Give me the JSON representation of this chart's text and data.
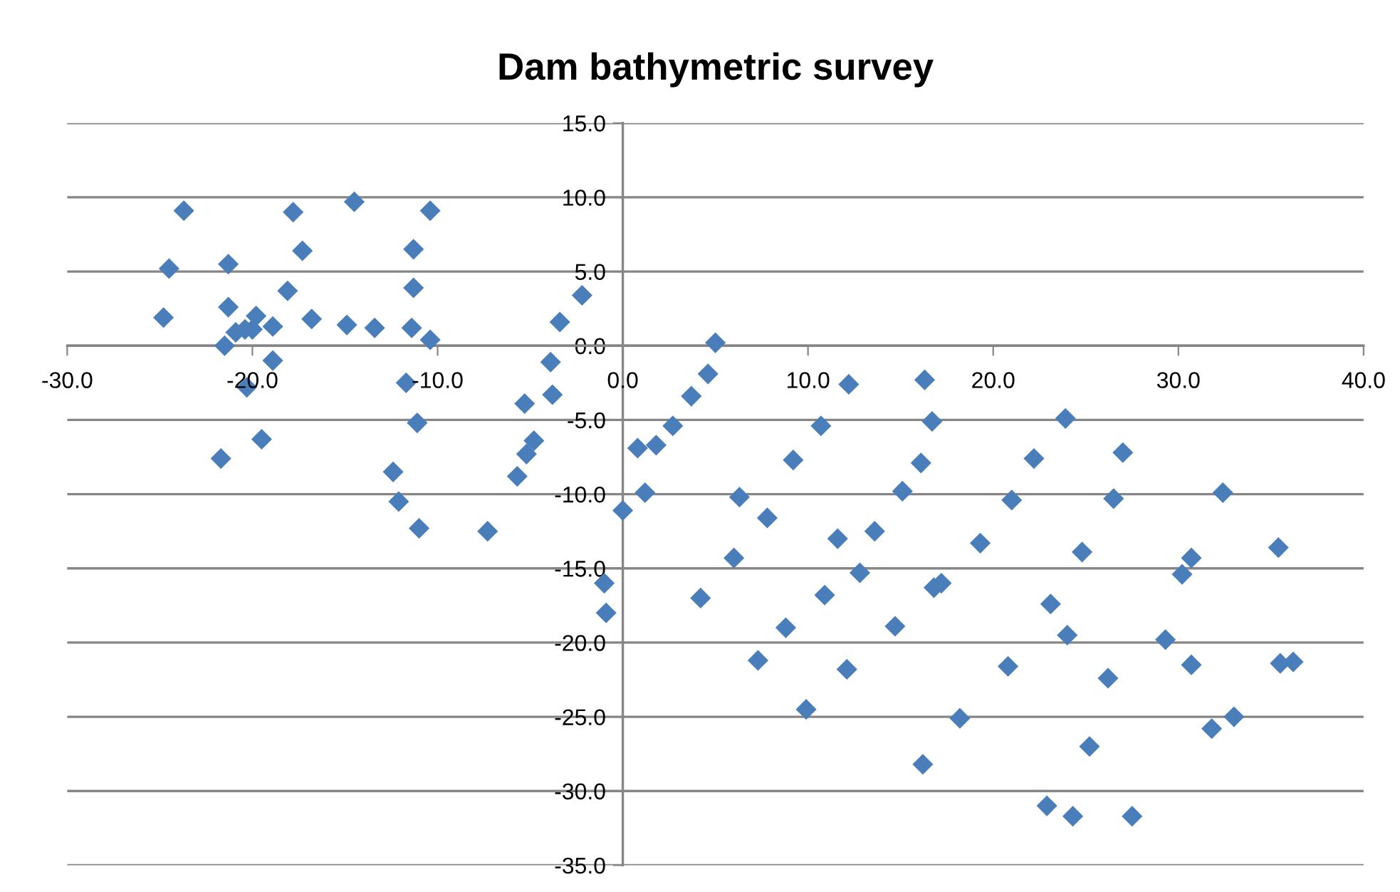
{
  "chart_data": {
    "type": "scatter",
    "title": "Dam bathymetric survey",
    "xlim": [
      -30,
      40
    ],
    "xticks": [
      {
        "value": -30,
        "label": "-30.0"
      },
      {
        "value": -20,
        "label": "-20.0"
      },
      {
        "value": -10,
        "label": "-10.0"
      },
      {
        "value": 0,
        "label": "0.0"
      },
      {
        "value": 10,
        "label": "10.0"
      },
      {
        "value": 20,
        "label": "20.0"
      },
      {
        "value": 30,
        "label": "30.0"
      },
      {
        "value": 40,
        "label": "40.0"
      }
    ],
    "ylim": [
      -35,
      15
    ],
    "yticks": [
      {
        "value": -35,
        "label": "-35.0"
      },
      {
        "value": -30,
        "label": "-30.0"
      },
      {
        "value": -25,
        "label": "-25.0"
      },
      {
        "value": -20,
        "label": "-20.0"
      },
      {
        "value": -15,
        "label": "-15.0"
      },
      {
        "value": -10,
        "label": "-10.0"
      },
      {
        "value": -5,
        "label": "-5.0"
      },
      {
        "value": 0,
        "label": "0.0"
      },
      {
        "value": 5,
        "label": "5.0"
      },
      {
        "value": 10,
        "label": "10.0"
      },
      {
        "value": 15,
        "label": "15.0"
      }
    ],
    "grid": "y",
    "marker": "diamond",
    "legend": false,
    "series": [
      {
        "color": "#4a7ebb",
        "x": [
          -23.7,
          -24.5,
          -24.8,
          -21.3,
          -21.3,
          -21.5,
          -20.9,
          -20.4,
          -19.8,
          -20.0,
          -18.9,
          -18.9,
          -20.3,
          -21.7,
          -19.5,
          -18.1,
          -17.8,
          -17.3,
          -16.8,
          -14.9,
          -14.5,
          -13.4,
          -11.7,
          -12.4,
          -12.1,
          -11.0,
          -11.1,
          -11.4,
          -11.3,
          -11.3,
          -10.4,
          -10.4,
          -7.3,
          -5.7,
          -5.2,
          -5.3,
          -4.8,
          -3.9,
          -3.8,
          -3.4,
          -2.2,
          0.0,
          1.2,
          0.8,
          1.8,
          2.7,
          3.7,
          4.6,
          5.0,
          -1.0,
          -0.9,
          12.2,
          16.3,
          10.7,
          16.7,
          9.2,
          16.1,
          23.9,
          22.2,
          27.0,
          6.3,
          15.1,
          21.0,
          26.5,
          32.4,
          7.8,
          11.6,
          13.6,
          19.3,
          24.8,
          35.4,
          30.7,
          30.2,
          6.0,
          12.8,
          16.8,
          17.2,
          4.2,
          10.9,
          23.1,
          8.8,
          14.7,
          24.0,
          29.3,
          7.3,
          12.1,
          20.8,
          26.2,
          30.7,
          35.5,
          36.2,
          9.9,
          18.2,
          33.0,
          31.8,
          25.2,
          16.2,
          22.9,
          24.3,
          27.5
        ],
        "values": [
          9.1,
          5.2,
          1.9,
          5.5,
          2.6,
          0.0,
          0.9,
          1.1,
          2.0,
          1.1,
          1.3,
          -1.0,
          -2.8,
          -7.6,
          -6.3,
          3.7,
          9.0,
          6.4,
          1.8,
          1.4,
          9.7,
          1.2,
          -2.5,
          -8.5,
          -10.5,
          -12.3,
          -5.2,
          1.2,
          3.9,
          6.5,
          9.1,
          0.4,
          -12.5,
          -8.8,
          -7.3,
          -3.9,
          -6.4,
          -1.1,
          -3.3,
          1.6,
          3.4,
          -11.1,
          -9.9,
          -6.9,
          -6.7,
          -5.4,
          -3.4,
          -1.9,
          0.2,
          -16.0,
          -18.0,
          -2.6,
          -2.3,
          -5.4,
          -5.1,
          -7.7,
          -7.9,
          -4.9,
          -7.6,
          -7.2,
          -10.2,
          -9.8,
          -10.4,
          -10.3,
          -9.9,
          -11.6,
          -13.0,
          -12.5,
          -13.3,
          -13.9,
          -13.6,
          -14.3,
          -15.4,
          -14.3,
          -15.3,
          -16.3,
          -16.0,
          -17.0,
          -16.8,
          -17.4,
          -19.0,
          -18.9,
          -19.5,
          -19.8,
          -21.2,
          -21.8,
          -21.6,
          -22.4,
          -21.5,
          -21.4,
          -21.3,
          -24.5,
          -25.1,
          -25.0,
          -25.8,
          -27.0,
          -28.2,
          -31.0,
          -31.7,
          -31.7
        ]
      }
    ]
  }
}
